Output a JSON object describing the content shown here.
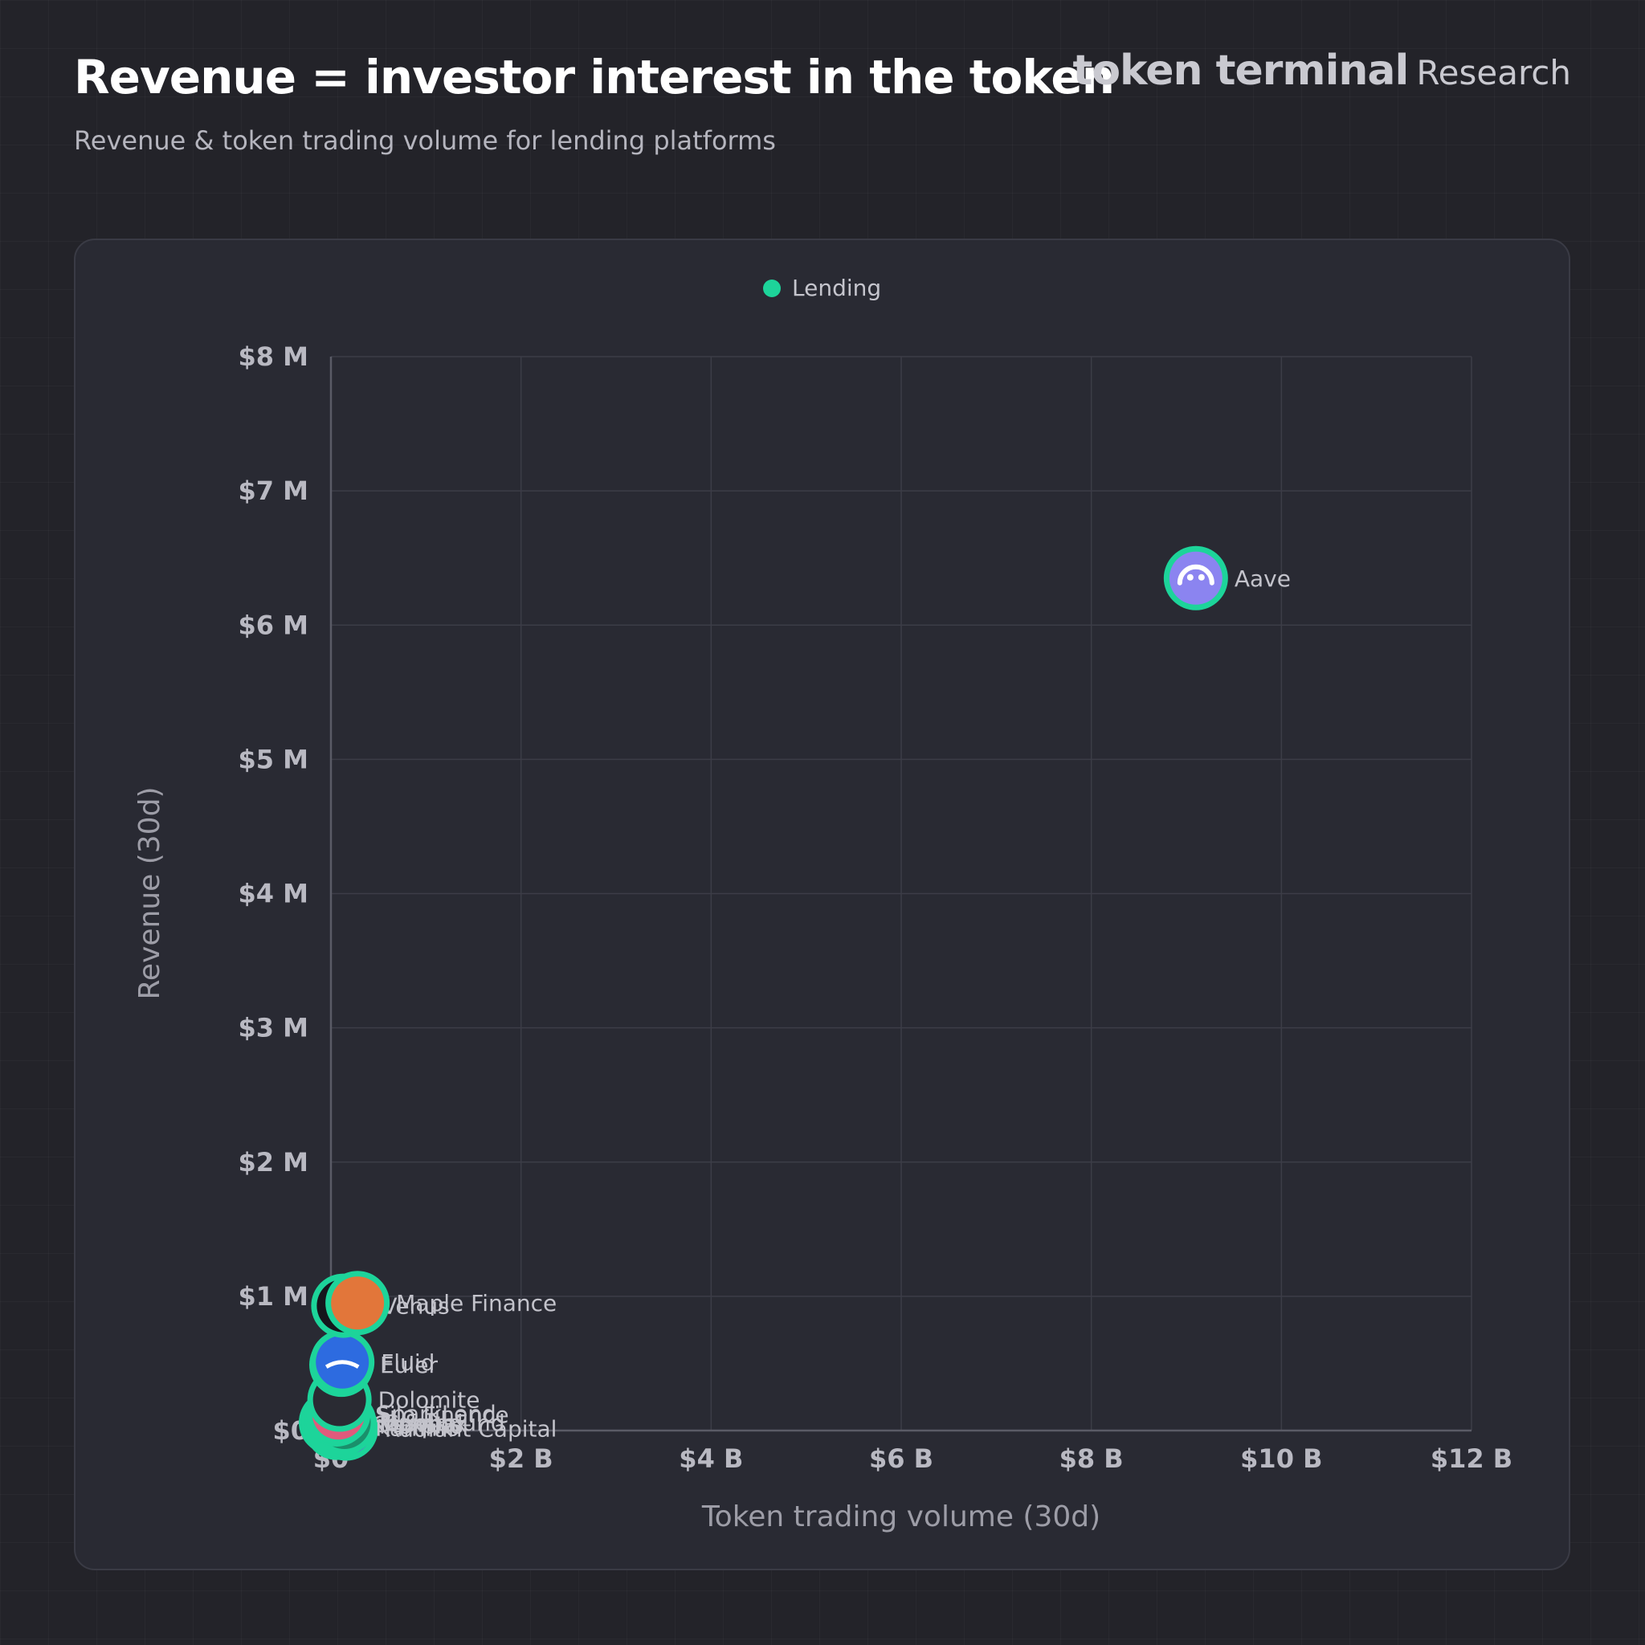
{
  "header": {
    "title": "Revenue = investor interest in the token",
    "subtitle": "Revenue & token trading volume for lending platforms",
    "brand": "token terminal",
    "brand_suffix": "Research"
  },
  "colors": {
    "accent": "#1dd49a",
    "background": "#232329",
    "card": "#292a33",
    "grid": "#3c3d47",
    "tick_text": "#b9b9c2",
    "point_label": "#c3c3cb"
  },
  "chart_data": {
    "type": "scatter",
    "title": "",
    "xlabel": "Token trading volume (30d)",
    "ylabel": "Revenue (30d)",
    "xlim": [
      0,
      12000000000
    ],
    "ylim": [
      0,
      8000000
    ],
    "x_ticks": [
      0,
      2000000000,
      4000000000,
      6000000000,
      8000000000,
      10000000000,
      12000000000
    ],
    "x_tick_labels": [
      "$0",
      "$2 B",
      "$4 B",
      "$6 B",
      "$8 B",
      "$10 B",
      "$12 B"
    ],
    "y_ticks": [
      0,
      1000000,
      2000000,
      3000000,
      4000000,
      5000000,
      6000000,
      7000000,
      8000000
    ],
    "y_tick_labels": [
      "$0",
      "$1 M",
      "$2 M",
      "$3 M",
      "$4 M",
      "$5 M",
      "$6 M",
      "$7 M",
      "$8 M"
    ],
    "grid": true,
    "legend": {
      "position": "top-center",
      "entries": [
        "Lending"
      ]
    },
    "series": [
      {
        "name": "Lending",
        "color": "#1dd49a",
        "points": [
          {
            "label": "Aave",
            "x": 9100000000,
            "y": 6350000,
            "icon": "aave-icon",
            "icon_color": "#8b84f0"
          },
          {
            "label": "Maple Finance",
            "x": 280000000,
            "y": 950000,
            "icon": "maple-icon",
            "icon_color": "#e2763a"
          },
          {
            "label": "Venus",
            "x": 130000000,
            "y": 930000,
            "icon": "venus-icon",
            "icon_color": "#15161c"
          },
          {
            "label": "Fluid",
            "x": 120000000,
            "y": 510000,
            "icon": "fluid-icon",
            "icon_color": "#2d6be0"
          },
          {
            "label": "Euler",
            "x": 110000000,
            "y": 490000,
            "icon": "euler-icon",
            "icon_color": "#1c8a6a"
          },
          {
            "label": "Dolomite",
            "x": 90000000,
            "y": 230000,
            "icon": "dolomite-icon",
            "icon_color": "#2a2b33"
          },
          {
            "label": "SparkLend",
            "x": 80000000,
            "y": 130000,
            "icon": "spark-icon",
            "icon_color": "#e05a7c"
          },
          {
            "label": "Silo Finance",
            "x": 60000000,
            "y": 120000,
            "icon": "silo-icon",
            "icon_color": "#1a1b22"
          },
          {
            "label": "Compound",
            "x": 140000000,
            "y": 60000,
            "icon": "compound-icon",
            "icon_color": "#1a8f6b"
          },
          {
            "label": "Morpho",
            "x": 100000000,
            "y": 40000,
            "icon": "morpho-icon",
            "icon_color": "#2f5ad8"
          },
          {
            "label": "Kamino",
            "x": 60000000,
            "y": 20000,
            "icon": "kamino-icon",
            "icon_color": "#2c4fd0"
          },
          {
            "label": "Radiant Capital",
            "x": 160000000,
            "y": 15000,
            "icon": "radiant-icon",
            "icon_color": "#7a52e0"
          },
          {
            "label": "Gearbox",
            "x": 30000000,
            "y": 50000,
            "icon": "gearbox-icon",
            "icon_color": "#6a3fd0"
          },
          {
            "label": "Notional",
            "x": 0,
            "y": 60000,
            "icon": "link-icon",
            "icon_color": "#0e0f14"
          }
        ]
      }
    ]
  }
}
